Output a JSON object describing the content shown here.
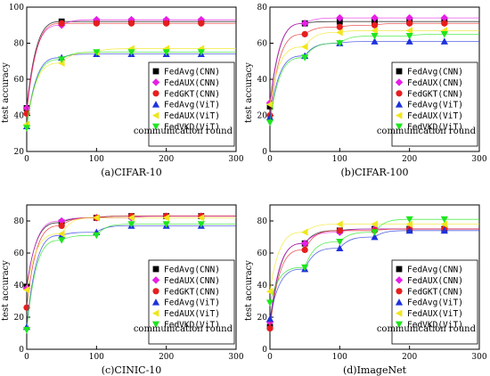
{
  "colors": {
    "FedAvg(CNN)": "#000000",
    "FedAUX(CNN)": "#e61ee6",
    "FedGKT(CNN)": "#e61e1e",
    "FedAvg(ViT)": "#1e32dc",
    "FedAUX(ViT)": "#f0e61e",
    "FedVKD(ViT)": "#1ee61e"
  },
  "chart_data": [
    {
      "type": "line",
      "caption": "(a)CIFAR-10",
      "xlabel": "communication round",
      "ylabel": "test accuracy",
      "xlim": [
        0,
        300
      ],
      "ylim": [
        20,
        100
      ],
      "xticks": [
        "0",
        "100",
        "200",
        "300"
      ],
      "yticks": [
        "20",
        "40",
        "60",
        "80",
        "100"
      ],
      "x": [
        0,
        50,
        100,
        150,
        200,
        250
      ],
      "series": [
        {
          "name": "FedAvg(CNN)",
          "marker": "square",
          "values": [
            44,
            92,
            92,
            92,
            92,
            92
          ]
        },
        {
          "name": "FedAUX(CNN)",
          "marker": "diamond",
          "values": [
            44,
            90,
            93,
            93,
            93,
            93
          ]
        },
        {
          "name": "FedGKT(CNN)",
          "marker": "circle",
          "values": [
            41,
            91,
            91,
            91,
            91,
            91
          ]
        },
        {
          "name": "FedAvg(ViT)",
          "marker": "triangle",
          "values": [
            34,
            72,
            74,
            74,
            74,
            74
          ]
        },
        {
          "name": "FedAUX(ViT)",
          "marker": "tri-left",
          "values": [
            35,
            69,
            75,
            77,
            77,
            77
          ]
        },
        {
          "name": "FedVKD(ViT)",
          "marker": "tri-down",
          "values": [
            33,
            71,
            75,
            75,
            75,
            75
          ]
        }
      ]
    },
    {
      "type": "line",
      "caption": "(b)CIFAR-100",
      "xlabel": "communication round",
      "ylabel": "test accuracy",
      "xlim": [
        0,
        300
      ],
      "ylim": [
        0,
        80
      ],
      "xticks": [
        "0",
        "100",
        "200",
        "300"
      ],
      "yticks": [
        "0",
        "20",
        "40",
        "60",
        "80"
      ],
      "x": [
        0,
        50,
        100,
        150,
        200,
        250
      ],
      "series": [
        {
          "name": "FedAvg(CNN)",
          "marker": "square",
          "values": [
            25,
            71,
            72,
            72,
            72,
            72
          ]
        },
        {
          "name": "FedAUX(CNN)",
          "marker": "diamond",
          "values": [
            27,
            71,
            74,
            74,
            74,
            74
          ]
        },
        {
          "name": "FedGKT(CNN)",
          "marker": "circle",
          "values": [
            20,
            65,
            69,
            70,
            71,
            71
          ]
        },
        {
          "name": "FedAvg(ViT)",
          "marker": "triangle",
          "values": [
            19,
            53,
            60,
            61,
            61,
            61
          ]
        },
        {
          "name": "FedAUX(ViT)",
          "marker": "tri-left",
          "values": [
            26,
            58,
            66,
            67,
            67,
            67
          ]
        },
        {
          "name": "FedVKD(ViT)",
          "marker": "tri-down",
          "values": [
            16,
            52,
            60,
            64,
            64,
            65
          ]
        }
      ]
    },
    {
      "type": "line",
      "caption": "(c)CINIC-10",
      "xlabel": "communication round",
      "ylabel": "test accuracy",
      "xlim": [
        0,
        300
      ],
      "ylim": [
        0,
        90
      ],
      "xticks": [
        "0",
        "100",
        "200",
        "300"
      ],
      "yticks": [
        "0",
        "20",
        "40",
        "60",
        "80"
      ],
      "x": [
        0,
        50,
        100,
        150,
        200,
        250
      ],
      "series": [
        {
          "name": "FedAvg(CNN)",
          "marker": "square",
          "values": [
            39,
            79,
            82,
            83,
            83,
            83
          ]
        },
        {
          "name": "FedAUX(CNN)",
          "marker": "diamond",
          "values": [
            38,
            80,
            82,
            82,
            83,
            83
          ]
        },
        {
          "name": "FedGKT(CNN)",
          "marker": "circle",
          "values": [
            26,
            77,
            82,
            83,
            83,
            83
          ]
        },
        {
          "name": "FedAvg(ViT)",
          "marker": "triangle",
          "values": [
            14,
            71,
            73,
            77,
            77,
            77
          ]
        },
        {
          "name": "FedAUX(ViT)",
          "marker": "tri-left",
          "values": [
            37,
            72,
            82,
            82,
            82,
            82
          ]
        },
        {
          "name": "FedVKD(ViT)",
          "marker": "tri-down",
          "values": [
            12,
            68,
            71,
            78,
            78,
            78
          ]
        }
      ]
    },
    {
      "type": "line",
      "caption": "(d)ImageNet",
      "xlabel": "communication round",
      "ylabel": "test accuracy",
      "xlim": [
        0,
        300
      ],
      "ylim": [
        0,
        90
      ],
      "xticks": [
        "0",
        "100",
        "200",
        "300"
      ],
      "yticks": [
        "0",
        "20",
        "40",
        "60",
        "80"
      ],
      "x": [
        0,
        50,
        100,
        150,
        200,
        250
      ],
      "series": [
        {
          "name": "FedAvg(CNN)",
          "marker": "square",
          "values": [
            14,
            66,
            74,
            75,
            75,
            75
          ]
        },
        {
          "name": "FedAUX(CNN)",
          "marker": "diamond",
          "values": [
            17,
            66,
            73,
            75,
            75,
            75
          ]
        },
        {
          "name": "FedGKT(CNN)",
          "marker": "circle",
          "values": [
            13,
            62,
            74,
            74,
            75,
            75
          ]
        },
        {
          "name": "FedAvg(ViT)",
          "marker": "triangle",
          "values": [
            19,
            50,
            63,
            70,
            74,
            74
          ]
        },
        {
          "name": "FedAUX(ViT)",
          "marker": "tri-left",
          "values": [
            36,
            73,
            78,
            78,
            78,
            78
          ]
        },
        {
          "name": "FedVKD(ViT)",
          "marker": "tri-down",
          "values": [
            29,
            51,
            67,
            73,
            81,
            81
          ]
        }
      ]
    }
  ]
}
